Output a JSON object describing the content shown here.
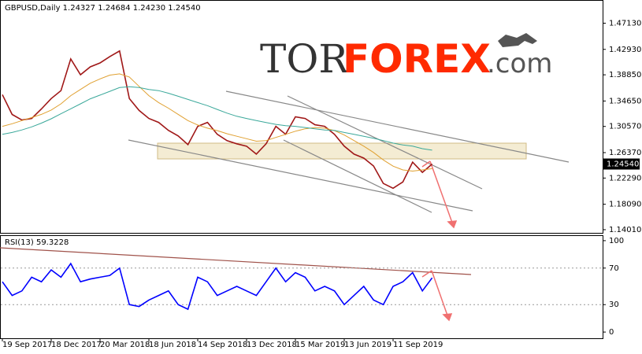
{
  "chart_data": [
    {
      "type": "line",
      "title": "GBPUSD,Daily  1.24327 1.24684 1.24230 1.24540",
      "ylim": [
        1.135,
        1.5085
      ],
      "yticks": [
        {
          "value": 1.4713,
          "label": "1.47130"
        },
        {
          "value": 1.4293,
          "label": "1.42930"
        },
        {
          "value": 1.3885,
          "label": "1.38850"
        },
        {
          "value": 1.3465,
          "label": "1.34650"
        },
        {
          "value": 1.3057,
          "label": "1.30570"
        },
        {
          "value": 1.2637,
          "label": "1.26370"
        },
        {
          "value": 1.2229,
          "label": "1.22290"
        },
        {
          "value": 1.1809,
          "label": "1.18090"
        },
        {
          "value": 1.1401,
          "label": "1.14010"
        }
      ],
      "price_marker": {
        "value": 1.2454,
        "label": "1.24540"
      },
      "watermark": {
        "left": "TOR",
        "middle": "FOREX",
        "right": ".com"
      },
      "series": [
        {
          "color": "#a01818",
          "values": [
            1.3567,
            1.3249,
            1.316,
            1.3185,
            1.3338,
            1.3504,
            1.3631,
            1.414,
            1.3886,
            1.4013,
            1.4076,
            1.4178,
            1.4267,
            1.3504,
            1.3313,
            1.3185,
            1.3122,
            1.2994,
            1.2905,
            1.2765,
            1.3058,
            1.3122,
            1.2931,
            1.2829,
            1.2778,
            1.274,
            1.2613,
            1.2778,
            1.3058,
            1.2931,
            1.3211,
            1.3185,
            1.3084,
            1.3058,
            1.2931,
            1.274,
            1.2613,
            1.2549,
            1.2422,
            1.2142,
            1.2065,
            1.2167,
            1.2485,
            1.232,
            1.2454
          ]
        },
        {
          "color": "#e0a030",
          "values": [
            1.3058,
            1.31,
            1.315,
            1.32,
            1.325,
            1.332,
            1.342,
            1.355,
            1.365,
            1.375,
            1.382,
            1.388,
            1.39,
            1.385,
            1.37,
            1.355,
            1.344,
            1.335,
            1.325,
            1.315,
            1.308,
            1.303,
            1.299,
            1.294,
            1.29,
            1.286,
            1.282,
            1.283,
            1.288,
            1.293,
            1.298,
            1.302,
            1.304,
            1.303,
            1.299,
            1.292,
            1.283,
            1.274,
            1.264,
            1.252,
            1.242,
            1.236,
            1.234,
            1.236,
            1.238
          ]
        },
        {
          "color": "#3aa89a",
          "values": [
            1.2931,
            1.296,
            1.3,
            1.305,
            1.311,
            1.318,
            1.326,
            1.334,
            1.342,
            1.35,
            1.356,
            1.362,
            1.368,
            1.3695,
            1.368,
            1.365,
            1.3631,
            1.359,
            1.354,
            1.349,
            1.344,
            1.339,
            1.333,
            1.327,
            1.322,
            1.3185,
            1.315,
            1.312,
            1.309,
            1.307,
            1.3058,
            1.304,
            1.302,
            1.3,
            1.2994,
            1.296,
            1.293,
            1.29,
            1.2867,
            1.283,
            1.279,
            1.276,
            1.274,
            1.27,
            1.2676
          ]
        }
      ]
    },
    {
      "type": "line",
      "title": "RSI(13) 59.3228",
      "ylim": [
        -6.8,
        105.1
      ],
      "yticks": [
        100,
        70,
        30,
        0
      ],
      "levels": [
        70,
        30
      ],
      "categories": [
        "19 Sep 2017",
        null,
        null,
        null,
        null,
        "18 Dec 2017",
        null,
        null,
        null,
        null,
        "20 Mar 2018",
        null,
        null,
        null,
        null,
        "18 Jun 2018",
        null,
        null,
        null,
        null,
        "14 Sep 2018",
        null,
        null,
        null,
        null,
        "13 Dec 2018",
        null,
        null,
        null,
        null,
        "15 Mar 2019",
        null,
        null,
        null,
        null,
        "13 Jun 2019",
        null,
        null,
        null,
        null,
        "11 Sep 2019",
        null,
        null,
        null,
        null
      ],
      "series": [
        {
          "color": "#0000ff",
          "values": [
            55,
            40,
            45,
            60,
            55,
            68,
            60,
            75,
            55,
            58,
            60,
            62,
            70,
            30,
            28,
            35,
            40,
            45,
            30,
            25,
            60,
            55,
            40,
            45,
            50,
            45,
            40,
            55,
            70,
            55,
            65,
            60,
            45,
            50,
            45,
            30,
            40,
            50,
            35,
            30,
            50,
            55,
            65,
            45,
            59.3228
          ]
        }
      ]
    }
  ]
}
